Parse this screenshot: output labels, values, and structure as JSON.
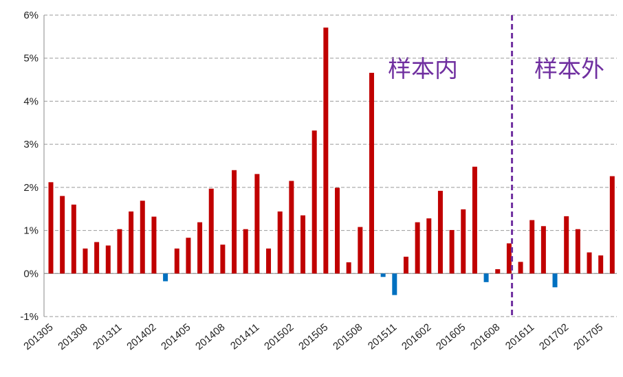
{
  "chart_data": {
    "type": "bar",
    "categories": [
      "201305",
      null,
      null,
      "201308",
      null,
      null,
      "201311",
      null,
      null,
      "201402",
      null,
      null,
      "201405",
      null,
      null,
      "201408",
      null,
      null,
      "201411",
      null,
      null,
      "201502",
      null,
      null,
      "201505",
      null,
      null,
      "201508",
      null,
      null,
      "201511",
      null,
      null,
      "201602",
      null,
      null,
      "201605",
      null,
      null,
      "201608",
      null,
      null,
      "201611",
      null,
      null,
      "201702",
      null,
      null,
      "201705",
      null
    ],
    "values": [
      2.12,
      1.8,
      1.6,
      0.58,
      0.73,
      0.65,
      1.03,
      1.44,
      1.69,
      1.32,
      -0.18,
      0.58,
      0.83,
      1.19,
      1.97,
      0.67,
      2.4,
      1.03,
      2.31,
      0.58,
      1.44,
      2.15,
      1.35,
      3.32,
      5.71,
      1.99,
      0.26,
      1.08,
      4.66,
      -0.08,
      -0.5,
      0.39,
      1.19,
      1.28,
      1.92,
      1.01,
      1.49,
      2.48,
      -0.2,
      0.1,
      0.7,
      0.27,
      1.24,
      1.1,
      -0.32,
      1.33,
      1.03,
      0.49,
      0.42,
      2.26
    ],
    "positive_color": "#c00000",
    "negative_color": "#0070c0",
    "ylim": [
      -1,
      6
    ],
    "yticks": [
      {
        "value": -1,
        "label": "-1%"
      },
      {
        "value": 0,
        "label": "0%"
      },
      {
        "value": 1,
        "label": "1%"
      },
      {
        "value": 2,
        "label": "2%"
      },
      {
        "value": 3,
        "label": "3%"
      },
      {
        "value": 4,
        "label": "4%"
      },
      {
        "value": 5,
        "label": "5%"
      },
      {
        "value": 6,
        "label": "6%"
      }
    ],
    "grid": true,
    "annotations": [
      "样本内",
      "样本外"
    ]
  }
}
